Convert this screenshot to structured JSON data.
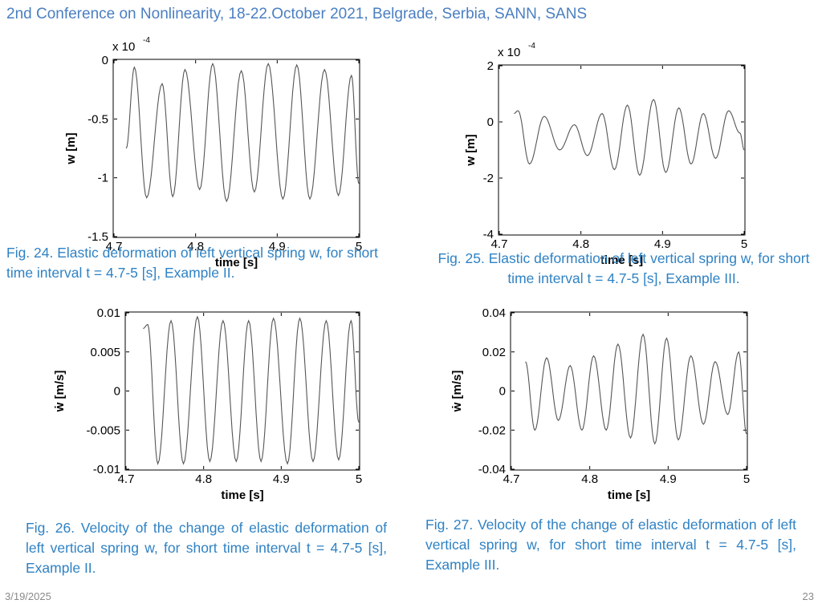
{
  "header": {
    "title": "2nd Conference on Nonlinearity, 18-22.October 2021, Belgrade, Serbia, SANN, SANS"
  },
  "captions": [
    "Fig. 24. Elastic deformation of left vertical spring w, for short time interval t = 4.7-5 [s],  Example II.",
    "Fig. 25. Elastic deformation of left vertical spring w, for short time interval t = 4.7-5 [s],  Example III.",
    "Fig.  26.  Velocity  of  the  change  of  elastic  deformation  of  left  vertical  spring  w,  for  short  time interval t = 4.7-5 [s], Example II.",
    "Fig.  27.  Velocity  of  the  change  of  elastic  deformation  of  left  vertical  spring  w,  for  short  time interval t = 4.7-5 [s], Example III."
  ],
  "footer": {
    "date": "3/19/2025",
    "page": "23"
  },
  "colors": {
    "accent": "#2f82c4",
    "header": "#4a7fc1",
    "line": "#555555"
  },
  "chart_data": [
    {
      "type": "line",
      "id": "fig24",
      "title": "",
      "xlabel": "time [s]",
      "ylabel": "w [m]",
      "exponent_label": "x 10",
      "exponent": "-4",
      "xlim": [
        4.7,
        5
      ],
      "ylim": [
        -1.5,
        0
      ],
      "xticks": [
        "4.7",
        "4.8",
        "4.9",
        "5"
      ],
      "xtick_values": [
        4.7,
        4.8,
        4.9,
        5
      ],
      "yticks": [
        "0",
        "-0.5",
        "-1",
        "-1.5"
      ],
      "ytick_values": [
        0,
        -0.5,
        -1,
        -1.5
      ],
      "series": [
        {
          "x": [
            4.715,
            4.725,
            4.74,
            4.759,
            4.772,
            4.787,
            4.805,
            4.821,
            4.838,
            4.856,
            4.872,
            4.889,
            4.907,
            4.924,
            4.94,
            4.958,
            4.975,
            4.991,
            5.0
          ],
          "y": [
            -0.75,
            -0.06,
            -1.17,
            -0.2,
            -1.16,
            -0.08,
            -1.1,
            -0.03,
            -1.2,
            -0.09,
            -1.12,
            -0.03,
            -1.18,
            -0.04,
            -1.18,
            -0.08,
            -1.15,
            -0.13,
            -1.05
          ]
        }
      ]
    },
    {
      "type": "line",
      "id": "fig25",
      "title": "",
      "xlabel": "time [s]",
      "ylabel": "w [m]",
      "exponent_label": "x 10",
      "exponent": "-4",
      "xlim": [
        4.7,
        5
      ],
      "ylim": [
        -4,
        2
      ],
      "xticks": [
        "4.7",
        "4.8",
        "4.9",
        "5"
      ],
      "xtick_values": [
        4.7,
        4.8,
        4.9,
        5
      ],
      "yticks": [
        "2",
        "0",
        "-2",
        "-4"
      ],
      "ytick_values": [
        2,
        0,
        -2,
        -4
      ],
      "series": [
        {
          "x": [
            4.718,
            4.723,
            4.737,
            4.755,
            4.774,
            4.792,
            4.808,
            4.826,
            4.841,
            4.857,
            4.872,
            4.889,
            4.904,
            4.92,
            4.935,
            4.95,
            4.965,
            4.981,
            4.995,
            5.0
          ],
          "y": [
            0.3,
            0.4,
            -1.5,
            0.2,
            -1.0,
            -0.1,
            -1.2,
            0.3,
            -1.7,
            0.6,
            -1.9,
            0.8,
            -1.8,
            0.5,
            -1.5,
            0.3,
            -1.3,
            0.4,
            -0.4,
            -1.0
          ]
        }
      ]
    },
    {
      "type": "line",
      "id": "fig26",
      "title": "",
      "xlabel": "time [s]",
      "ylabel": "ẇ [m/s]",
      "xlim": [
        4.7,
        5
      ],
      "ylim": [
        -0.01,
        0.01
      ],
      "xticks": [
        "4.7",
        "4.8",
        "4.9",
        "5"
      ],
      "xtick_values": [
        4.7,
        4.8,
        4.9,
        5
      ],
      "yticks": [
        "0.01",
        "0.005",
        "0",
        "-0.005",
        "-0.01"
      ],
      "ytick_values": [
        0.01,
        0.005,
        0,
        -0.005,
        -0.01
      ],
      "series": [
        {
          "x": [
            4.722,
            4.728,
            4.741,
            4.758,
            4.774,
            4.792,
            4.808,
            4.825,
            4.842,
            4.858,
            4.874,
            4.89,
            4.908,
            4.924,
            4.941,
            4.958,
            4.974,
            4.99,
            5.0
          ],
          "y": [
            0.008,
            0.0085,
            -0.0093,
            0.009,
            -0.0093,
            0.0095,
            -0.009,
            0.009,
            -0.009,
            0.009,
            -0.009,
            0.0093,
            -0.0093,
            0.0093,
            -0.009,
            0.009,
            -0.0088,
            0.009,
            -0.004
          ]
        }
      ]
    },
    {
      "type": "line",
      "id": "fig27",
      "title": "",
      "xlabel": "time [s]",
      "ylabel": "ẇ [m/s]",
      "xlim": [
        4.7,
        5
      ],
      "ylim": [
        -0.04,
        0.04
      ],
      "xticks": [
        "4.7",
        "4.8",
        "4.9",
        "5"
      ],
      "xtick_values": [
        4.7,
        4.8,
        4.9,
        5
      ],
      "yticks": [
        "0.04",
        "0.02",
        "0",
        "-0.02",
        "-0.04"
      ],
      "ytick_values": [
        0.04,
        0.02,
        0,
        -0.02,
        -0.04
      ],
      "series": [
        {
          "x": [
            4.718,
            4.73,
            4.745,
            4.76,
            4.775,
            4.79,
            4.805,
            4.821,
            4.836,
            4.852,
            4.868,
            4.883,
            4.898,
            4.913,
            4.929,
            4.945,
            4.96,
            4.976,
            4.99,
            5.0
          ],
          "y": [
            0.015,
            -0.02,
            0.017,
            -0.015,
            0.013,
            -0.02,
            0.018,
            -0.02,
            0.024,
            -0.024,
            0.029,
            -0.027,
            0.027,
            -0.025,
            0.018,
            -0.017,
            0.015,
            -0.012,
            0.02,
            -0.022
          ]
        }
      ]
    }
  ]
}
